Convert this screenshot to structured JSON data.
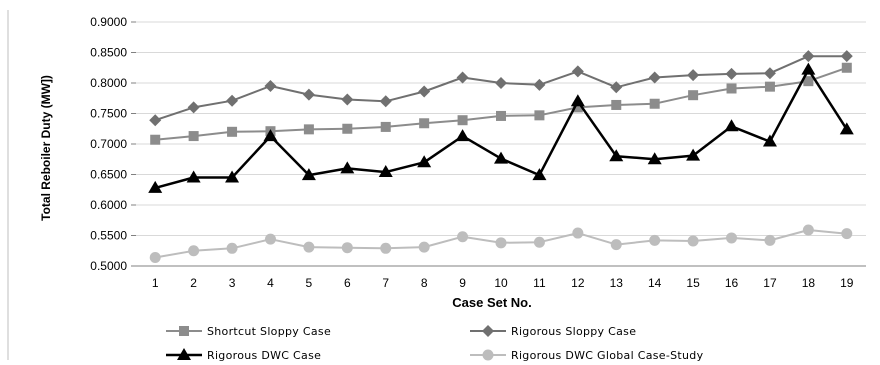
{
  "chart_data": {
    "type": "line",
    "xlabel": "Case Set No.",
    "ylabel": "Total Reboiler Duty (MW])",
    "ylim": [
      0.5,
      0.9
    ],
    "ytick_step": 0.05,
    "y_tick_labels": [
      "0.5000",
      "0.5500",
      "0.6000",
      "0.6500",
      "0.7000",
      "0.7500",
      "0.8000",
      "0.8500",
      "0.9000"
    ],
    "categories": [
      "1",
      "2",
      "3",
      "4",
      "5",
      "6",
      "7",
      "8",
      "9",
      "10",
      "11",
      "12",
      "13",
      "14",
      "15",
      "16",
      "17",
      "18",
      "19"
    ],
    "grid": "horizontal",
    "legend_placement": "bottom",
    "series": [
      {
        "name": "Shortcut Sloppy Case",
        "color": "#8c8c8c",
        "marker": "square",
        "line_width": 2,
        "values": [
          0.707,
          0.713,
          0.72,
          0.721,
          0.724,
          0.725,
          0.728,
          0.734,
          0.739,
          0.746,
          0.747,
          0.76,
          0.764,
          0.766,
          0.78,
          0.791,
          0.794,
          0.803,
          0.825
        ]
      },
      {
        "name": "Rigorous Sloppy Case",
        "color": "#707070",
        "marker": "diamond",
        "line_width": 2,
        "values": [
          0.739,
          0.76,
          0.771,
          0.795,
          0.781,
          0.773,
          0.77,
          0.786,
          0.809,
          0.8,
          0.797,
          0.819,
          0.793,
          0.809,
          0.813,
          0.815,
          0.816,
          0.844,
          0.844
        ]
      },
      {
        "name": "Rigorous DWC Case",
        "color": "#000000",
        "marker": "triangle",
        "line_width": 2.5,
        "values": [
          0.628,
          0.645,
          0.645,
          0.713,
          0.649,
          0.66,
          0.654,
          0.67,
          0.713,
          0.676,
          0.649,
          0.77,
          0.68,
          0.675,
          0.681,
          0.729,
          0.704,
          0.822,
          0.724
        ]
      },
      {
        "name": "Rigorous DWC Global Case-Study",
        "color": "#bdbdbd",
        "marker": "circle",
        "line_width": 2,
        "values": [
          0.514,
          0.525,
          0.529,
          0.544,
          0.531,
          0.53,
          0.529,
          0.531,
          0.548,
          0.538,
          0.539,
          0.554,
          0.535,
          0.542,
          0.541,
          0.546,
          0.542,
          0.559,
          0.553
        ]
      }
    ]
  }
}
